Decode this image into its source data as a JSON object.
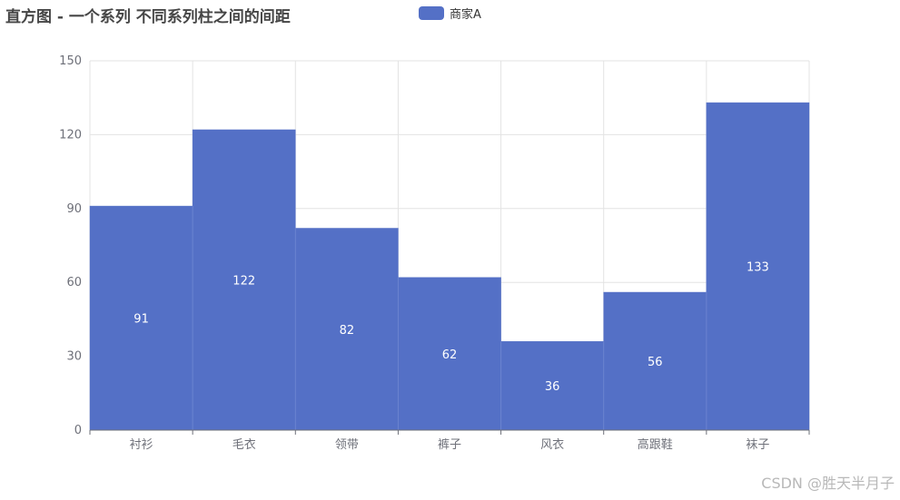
{
  "chart_data": {
    "type": "bar",
    "title": "直方图 - 一个系列 不同系列柱之间的间距",
    "categories": [
      "衬衫",
      "毛衣",
      "领带",
      "裤子",
      "风衣",
      "高跟鞋",
      "袜子"
    ],
    "series": [
      {
        "name": "商家A",
        "values": [
          91,
          122,
          82,
          62,
          36,
          56,
          133
        ],
        "color": "#5470c6"
      }
    ],
    "ylim": [
      0,
      150
    ],
    "yticks": [
      0,
      30,
      60,
      90,
      120,
      150
    ],
    "grid": true,
    "legend_position": "top-center",
    "data_labels": "inside-center"
  },
  "watermark": "CSDN @胜天半月子"
}
